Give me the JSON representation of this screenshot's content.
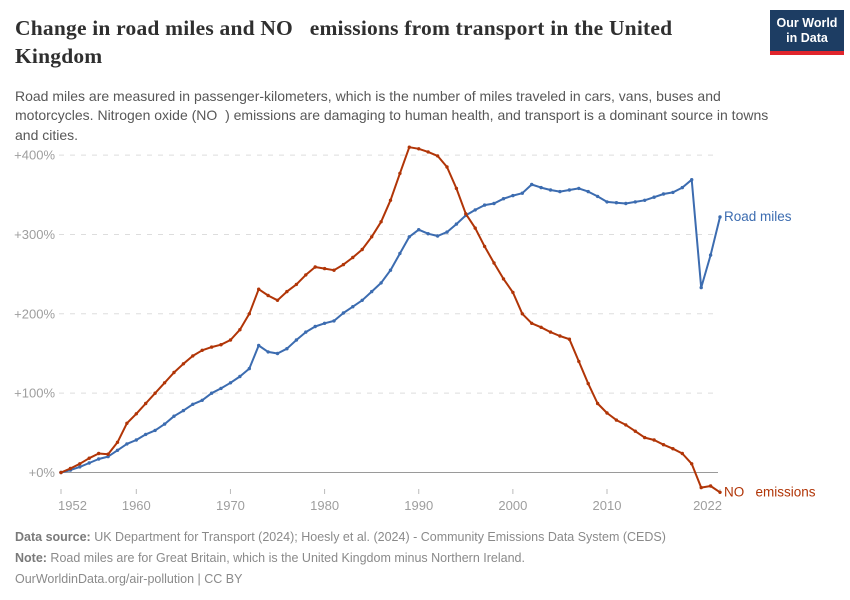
{
  "header": {
    "title": "Change in road miles and NO   emissions from transport in the United Kingdom",
    "subtitle": "Road miles are measured in passenger-kilometers, which is the number of miles traveled in cars, vans, buses and motorcycles. Nitrogen oxide (NO  ) emissions are damaging to human health, and transport is a dominant source in towns and cities."
  },
  "logo": {
    "line1": "Our World",
    "line2": "in Data"
  },
  "chart_data": {
    "type": "line",
    "title": "Change in road miles and NO emissions from transport in the United Kingdom",
    "grid": "horizontal-dashed",
    "legend_position": "end-of-line",
    "ylim": [
      -40,
      430
    ],
    "y_ticks": [
      {
        "value": 0,
        "label": "+0%"
      },
      {
        "value": 100,
        "label": "+100%"
      },
      {
        "value": 200,
        "label": "+200%"
      },
      {
        "value": 300,
        "label": "+300%"
      },
      {
        "value": 400,
        "label": "+400%"
      }
    ],
    "x_ticks": [
      1952,
      1960,
      1970,
      1980,
      1990,
      2000,
      2010,
      2022
    ],
    "x": [
      1952,
      1953,
      1954,
      1955,
      1956,
      1957,
      1958,
      1959,
      1960,
      1961,
      1962,
      1963,
      1964,
      1965,
      1966,
      1967,
      1968,
      1969,
      1970,
      1971,
      1972,
      1973,
      1974,
      1975,
      1976,
      1977,
      1978,
      1979,
      1980,
      1981,
      1982,
      1983,
      1984,
      1985,
      1986,
      1987,
      1988,
      1989,
      1990,
      1991,
      1992,
      1993,
      1994,
      1995,
      1996,
      1997,
      1998,
      1999,
      2000,
      2001,
      2002,
      2003,
      2004,
      2005,
      2006,
      2007,
      2008,
      2009,
      2010,
      2011,
      2012,
      2013,
      2014,
      2015,
      2016,
      2017,
      2018,
      2019,
      2020,
      2021,
      2022
    ],
    "series": [
      {
        "id": "road-miles",
        "name": "Road miles",
        "color": "#3C6CB0",
        "values": [
          0,
          3,
          7,
          12,
          17,
          20,
          28,
          36,
          41,
          48,
          53,
          61,
          71,
          78,
          86,
          91,
          100,
          106,
          113,
          121,
          131,
          160,
          152,
          150,
          156,
          167,
          177,
          184,
          188,
          191,
          201,
          209,
          217,
          228,
          239,
          255,
          276,
          297,
          306,
          301,
          298,
          303,
          313,
          324,
          331,
          337,
          339,
          345,
          349,
          352,
          363,
          359,
          356,
          354,
          356,
          358,
          354,
          348,
          341,
          340,
          339,
          341,
          343,
          347,
          351,
          353,
          359,
          369,
          233,
          274,
          322
        ]
      },
      {
        "id": "nox-emissions",
        "name": "NO   emissions",
        "color": "#B13507",
        "values": [
          0,
          5,
          11,
          18,
          24,
          23,
          38,
          62,
          74,
          87,
          100,
          113,
          126,
          137,
          147,
          154,
          158,
          161,
          167,
          180,
          200,
          231,
          223,
          217,
          228,
          237,
          249,
          259,
          257,
          255,
          262,
          271,
          281,
          297,
          316,
          343,
          377,
          410,
          408,
          404,
          399,
          385,
          358,
          326,
          308,
          285,
          264,
          244,
          227,
          200,
          188,
          183,
          177,
          172,
          168,
          140,
          112,
          87,
          75,
          66,
          60,
          52,
          44,
          41,
          35,
          30,
          24,
          11,
          -19,
          -17,
          -25
        ]
      }
    ]
  },
  "footer": {
    "source_label": "Data source:",
    "source_text": " UK Department for Transport (2024); Hoesly et al. (2024) - Community Emissions Data System (CEDS)",
    "note_label": "Note:",
    "note_text": " Road miles are for Great Britain, which is the United Kingdom minus Northern Ireland.",
    "citation": "OurWorldinData.org/air-pollution | CC BY"
  }
}
